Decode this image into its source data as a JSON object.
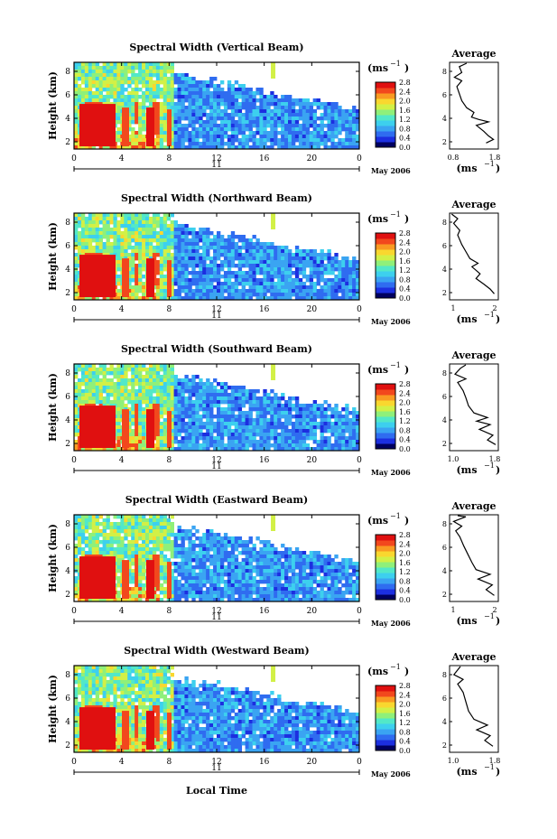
{
  "figure": {
    "x_axis_label": "Local Time",
    "date_label": "May 2006",
    "day_label": "11",
    "unit_label": "(ms",
    "unit_exp": "−1",
    "avg_title": "Average"
  },
  "colors": {
    "colormap": [
      "#000060",
      "#1c2fe0",
      "#2f6cf0",
      "#3aa4f2",
      "#3dd0ee",
      "#52e8c8",
      "#8ff07a",
      "#d2f046",
      "#f9d72f",
      "#f99a22",
      "#f2481d",
      "#e01010"
    ]
  },
  "chart_data": [
    {
      "type": "heatmap",
      "title": "Spectral Width (Vertical Beam)",
      "ylabel": "Height (km)",
      "xticks": [
        "0",
        "4",
        "8",
        "12",
        "16",
        "20",
        "0"
      ],
      "yticks": [
        "2",
        "4",
        "6",
        "8"
      ],
      "colorbar_ticks": [
        "0.0",
        "0.4",
        "0.8",
        "1.2",
        "1.6",
        "2.0",
        "2.4",
        "2.8"
      ],
      "colorbar_range": [
        0,
        3.0
      ],
      "average": {
        "xlim": [
          0.8,
          1.8
        ],
        "xticks": [
          "0.8",
          "1.8"
        ],
        "yticks": [
          "2",
          "4",
          "6",
          "8"
        ],
        "profile": [
          [
            1.55,
            1.0
          ],
          [
            1.7,
            1.3
          ],
          [
            1.6,
            1.6
          ],
          [
            1.5,
            2.0
          ],
          [
            1.35,
            2.5
          ],
          [
            1.6,
            2.8
          ],
          [
            1.4,
            3.0
          ],
          [
            1.25,
            3.2
          ],
          [
            1.3,
            3.6
          ],
          [
            1.15,
            4.0
          ],
          [
            1.05,
            4.6
          ],
          [
            1.0,
            5.2
          ],
          [
            0.95,
            5.8
          ],
          [
            1.05,
            6.3
          ],
          [
            0.9,
            6.6
          ],
          [
            1.05,
            7.0
          ],
          [
            1.0,
            7.5
          ],
          [
            1.15,
            7.9
          ]
        ]
      }
    },
    {
      "type": "heatmap",
      "title": "Spectral Width (Northward Beam)",
      "ylabel": "Height (km)",
      "xticks": [
        "0",
        "4",
        "8",
        "12",
        "16",
        "20",
        "0"
      ],
      "yticks": [
        "2",
        "4",
        "6",
        "8"
      ],
      "colorbar_ticks": [
        "0.0",
        "0.4",
        "0.8",
        "1.2",
        "1.6",
        "2.0",
        "2.4",
        "2.8"
      ],
      "colorbar_range": [
        0,
        3.0
      ],
      "average": {
        "xlim": [
          0.9,
          2.1
        ],
        "xticks": [
          "1",
          "2"
        ],
        "yticks": [
          "2",
          "4",
          "6",
          "8"
        ],
        "profile": [
          [
            2.0,
            1.0
          ],
          [
            1.9,
            1.4
          ],
          [
            1.75,
            1.8
          ],
          [
            1.55,
            2.3
          ],
          [
            1.65,
            2.7
          ],
          [
            1.45,
            3.3
          ],
          [
            1.6,
            3.6
          ],
          [
            1.4,
            4.0
          ],
          [
            1.3,
            4.6
          ],
          [
            1.2,
            5.2
          ],
          [
            1.1,
            6.0
          ],
          [
            1.15,
            6.4
          ],
          [
            1.0,
            7.0
          ],
          [
            1.1,
            7.4
          ],
          [
            0.95,
            7.9
          ]
        ]
      }
    },
    {
      "type": "heatmap",
      "title": "Spectral Width (Southward Beam)",
      "ylabel": "Height (km)",
      "xticks": [
        "0",
        "4",
        "8",
        "12",
        "16",
        "20",
        "0"
      ],
      "yticks": [
        "2",
        "4",
        "6",
        "8"
      ],
      "colorbar_ticks": [
        "0.0",
        "0.4",
        "0.8",
        "1.2",
        "1.6",
        "2.0",
        "2.4",
        "2.8"
      ],
      "colorbar_range": [
        0,
        3.0
      ],
      "average": {
        "xlim": [
          0.9,
          1.8
        ],
        "xticks": [
          "1.0",
          "1.8"
        ],
        "yticks": [
          "2",
          "4",
          "6",
          "8"
        ],
        "profile": [
          [
            1.75,
            1.0
          ],
          [
            1.6,
            1.4
          ],
          [
            1.7,
            1.8
          ],
          [
            1.45,
            2.3
          ],
          [
            1.65,
            2.7
          ],
          [
            1.4,
            3.0
          ],
          [
            1.6,
            3.3
          ],
          [
            1.35,
            3.7
          ],
          [
            1.25,
            4.3
          ],
          [
            1.2,
            5.0
          ],
          [
            1.15,
            5.6
          ],
          [
            1.05,
            6.3
          ],
          [
            1.2,
            6.6
          ],
          [
            1.0,
            7.0
          ],
          [
            1.1,
            7.5
          ],
          [
            1.2,
            7.9
          ]
        ]
      }
    },
    {
      "type": "heatmap",
      "title": "Spectral Width (Eastward Beam)",
      "ylabel": "Height (km)",
      "xticks": [
        "0",
        "4",
        "8",
        "12",
        "16",
        "20",
        "0"
      ],
      "yticks": [
        "2",
        "4",
        "6",
        "8"
      ],
      "colorbar_ticks": [
        "0.0",
        "0.4",
        "0.8",
        "1.2",
        "1.6",
        "2.0",
        "2.4",
        "2.8"
      ],
      "colorbar_range": [
        0,
        3.0
      ],
      "average": {
        "xlim": [
          0.9,
          2.1
        ],
        "xticks": [
          "1",
          "2"
        ],
        "yticks": [
          "2",
          "4",
          "6",
          "8"
        ],
        "profile": [
          [
            2.0,
            1.0
          ],
          [
            1.8,
            1.5
          ],
          [
            1.95,
            1.9
          ],
          [
            1.6,
            2.4
          ],
          [
            1.9,
            2.8
          ],
          [
            1.55,
            3.2
          ],
          [
            1.45,
            3.8
          ],
          [
            1.35,
            4.5
          ],
          [
            1.25,
            5.2
          ],
          [
            1.15,
            6.0
          ],
          [
            1.05,
            6.5
          ],
          [
            1.2,
            6.9
          ],
          [
            1.0,
            7.3
          ],
          [
            1.3,
            7.7
          ],
          [
            1.1,
            7.9
          ]
        ]
      }
    },
    {
      "type": "heatmap",
      "title": "Spectral Width (Westward Beam)",
      "ylabel": "Height (km)",
      "xticks": [
        "0",
        "4",
        "8",
        "12",
        "16",
        "20",
        "0"
      ],
      "yticks": [
        "2",
        "4",
        "6",
        "8"
      ],
      "colorbar_ticks": [
        "0.0",
        "0.4",
        "0.8",
        "1.2",
        "1.6",
        "2.0",
        "2.4",
        "2.8"
      ],
      "colorbar_range": [
        0,
        3.0
      ],
      "average": {
        "xlim": [
          0.9,
          1.8
        ],
        "xticks": [
          "1.0",
          "1.8"
        ],
        "yticks": [
          "2",
          "4",
          "6",
          "8"
        ],
        "profile": [
          [
            1.7,
            1.0
          ],
          [
            1.55,
            1.5
          ],
          [
            1.65,
            1.9
          ],
          [
            1.4,
            2.4
          ],
          [
            1.6,
            2.8
          ],
          [
            1.35,
            3.3
          ],
          [
            1.25,
            4.0
          ],
          [
            1.2,
            4.8
          ],
          [
            1.15,
            5.6
          ],
          [
            1.05,
            6.3
          ],
          [
            1.15,
            6.7
          ],
          [
            0.98,
            7.1
          ],
          [
            1.05,
            7.5
          ],
          [
            1.1,
            7.9
          ]
        ]
      }
    }
  ]
}
